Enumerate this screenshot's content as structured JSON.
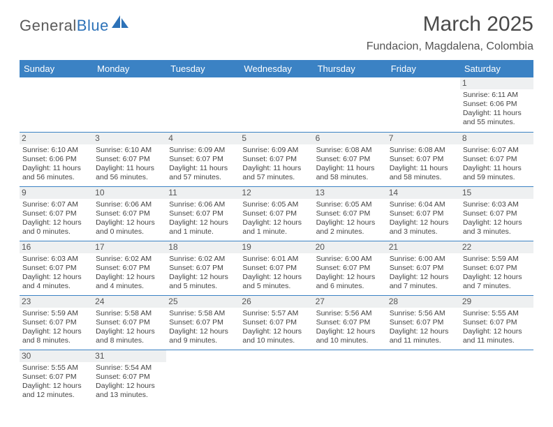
{
  "brand": {
    "name1": "General",
    "name2": "Blue"
  },
  "title": "March 2025",
  "location": "Fundacion, Magdalena, Colombia",
  "header_bg": "#3b82c4",
  "weekdays": [
    "Sunday",
    "Monday",
    "Tuesday",
    "Wednesday",
    "Thursday",
    "Friday",
    "Saturday"
  ],
  "weeks": [
    [
      {
        "n": "",
        "lines": []
      },
      {
        "n": "",
        "lines": []
      },
      {
        "n": "",
        "lines": []
      },
      {
        "n": "",
        "lines": []
      },
      {
        "n": "",
        "lines": []
      },
      {
        "n": "",
        "lines": []
      },
      {
        "n": "1",
        "lines": [
          "Sunrise: 6:11 AM",
          "Sunset: 6:06 PM",
          "Daylight: 11 hours and 55 minutes."
        ]
      }
    ],
    [
      {
        "n": "2",
        "lines": [
          "Sunrise: 6:10 AM",
          "Sunset: 6:06 PM",
          "Daylight: 11 hours and 56 minutes."
        ]
      },
      {
        "n": "3",
        "lines": [
          "Sunrise: 6:10 AM",
          "Sunset: 6:07 PM",
          "Daylight: 11 hours and 56 minutes."
        ]
      },
      {
        "n": "4",
        "lines": [
          "Sunrise: 6:09 AM",
          "Sunset: 6:07 PM",
          "Daylight: 11 hours and 57 minutes."
        ]
      },
      {
        "n": "5",
        "lines": [
          "Sunrise: 6:09 AM",
          "Sunset: 6:07 PM",
          "Daylight: 11 hours and 57 minutes."
        ]
      },
      {
        "n": "6",
        "lines": [
          "Sunrise: 6:08 AM",
          "Sunset: 6:07 PM",
          "Daylight: 11 hours and 58 minutes."
        ]
      },
      {
        "n": "7",
        "lines": [
          "Sunrise: 6:08 AM",
          "Sunset: 6:07 PM",
          "Daylight: 11 hours and 58 minutes."
        ]
      },
      {
        "n": "8",
        "lines": [
          "Sunrise: 6:07 AM",
          "Sunset: 6:07 PM",
          "Daylight: 11 hours and 59 minutes."
        ]
      }
    ],
    [
      {
        "n": "9",
        "lines": [
          "Sunrise: 6:07 AM",
          "Sunset: 6:07 PM",
          "Daylight: 12 hours and 0 minutes."
        ]
      },
      {
        "n": "10",
        "lines": [
          "Sunrise: 6:06 AM",
          "Sunset: 6:07 PM",
          "Daylight: 12 hours and 0 minutes."
        ]
      },
      {
        "n": "11",
        "lines": [
          "Sunrise: 6:06 AM",
          "Sunset: 6:07 PM",
          "Daylight: 12 hours and 1 minute."
        ]
      },
      {
        "n": "12",
        "lines": [
          "Sunrise: 6:05 AM",
          "Sunset: 6:07 PM",
          "Daylight: 12 hours and 1 minute."
        ]
      },
      {
        "n": "13",
        "lines": [
          "Sunrise: 6:05 AM",
          "Sunset: 6:07 PM",
          "Daylight: 12 hours and 2 minutes."
        ]
      },
      {
        "n": "14",
        "lines": [
          "Sunrise: 6:04 AM",
          "Sunset: 6:07 PM",
          "Daylight: 12 hours and 3 minutes."
        ]
      },
      {
        "n": "15",
        "lines": [
          "Sunrise: 6:03 AM",
          "Sunset: 6:07 PM",
          "Daylight: 12 hours and 3 minutes."
        ]
      }
    ],
    [
      {
        "n": "16",
        "lines": [
          "Sunrise: 6:03 AM",
          "Sunset: 6:07 PM",
          "Daylight: 12 hours and 4 minutes."
        ]
      },
      {
        "n": "17",
        "lines": [
          "Sunrise: 6:02 AM",
          "Sunset: 6:07 PM",
          "Daylight: 12 hours and 4 minutes."
        ]
      },
      {
        "n": "18",
        "lines": [
          "Sunrise: 6:02 AM",
          "Sunset: 6:07 PM",
          "Daylight: 12 hours and 5 minutes."
        ]
      },
      {
        "n": "19",
        "lines": [
          "Sunrise: 6:01 AM",
          "Sunset: 6:07 PM",
          "Daylight: 12 hours and 5 minutes."
        ]
      },
      {
        "n": "20",
        "lines": [
          "Sunrise: 6:00 AM",
          "Sunset: 6:07 PM",
          "Daylight: 12 hours and 6 minutes."
        ]
      },
      {
        "n": "21",
        "lines": [
          "Sunrise: 6:00 AM",
          "Sunset: 6:07 PM",
          "Daylight: 12 hours and 7 minutes."
        ]
      },
      {
        "n": "22",
        "lines": [
          "Sunrise: 5:59 AM",
          "Sunset: 6:07 PM",
          "Daylight: 12 hours and 7 minutes."
        ]
      }
    ],
    [
      {
        "n": "23",
        "lines": [
          "Sunrise: 5:59 AM",
          "Sunset: 6:07 PM",
          "Daylight: 12 hours and 8 minutes."
        ]
      },
      {
        "n": "24",
        "lines": [
          "Sunrise: 5:58 AM",
          "Sunset: 6:07 PM",
          "Daylight: 12 hours and 8 minutes."
        ]
      },
      {
        "n": "25",
        "lines": [
          "Sunrise: 5:58 AM",
          "Sunset: 6:07 PM",
          "Daylight: 12 hours and 9 minutes."
        ]
      },
      {
        "n": "26",
        "lines": [
          "Sunrise: 5:57 AM",
          "Sunset: 6:07 PM",
          "Daylight: 12 hours and 10 minutes."
        ]
      },
      {
        "n": "27",
        "lines": [
          "Sunrise: 5:56 AM",
          "Sunset: 6:07 PM",
          "Daylight: 12 hours and 10 minutes."
        ]
      },
      {
        "n": "28",
        "lines": [
          "Sunrise: 5:56 AM",
          "Sunset: 6:07 PM",
          "Daylight: 12 hours and 11 minutes."
        ]
      },
      {
        "n": "29",
        "lines": [
          "Sunrise: 5:55 AM",
          "Sunset: 6:07 PM",
          "Daylight: 12 hours and 11 minutes."
        ]
      }
    ],
    [
      {
        "n": "30",
        "lines": [
          "Sunrise: 5:55 AM",
          "Sunset: 6:07 PM",
          "Daylight: 12 hours and 12 minutes."
        ]
      },
      {
        "n": "31",
        "lines": [
          "Sunrise: 5:54 AM",
          "Sunset: 6:07 PM",
          "Daylight: 12 hours and 13 minutes."
        ]
      },
      {
        "n": "",
        "lines": []
      },
      {
        "n": "",
        "lines": []
      },
      {
        "n": "",
        "lines": []
      },
      {
        "n": "",
        "lines": []
      },
      {
        "n": "",
        "lines": []
      }
    ]
  ]
}
